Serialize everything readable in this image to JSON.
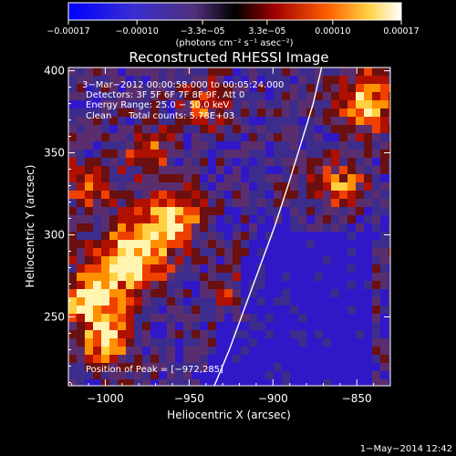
{
  "chart_data": {
    "type": "heatmap",
    "title": "Reconstructed RHESSI Image",
    "xlabel": "Heliocentric X (arcsec)",
    "ylabel": "Heliocentric Y (arcsec)",
    "xlim": [
      -1022,
      -830
    ],
    "ylim": [
      208,
      402
    ],
    "x_ticks": [
      -1000,
      -950,
      -900,
      -850
    ],
    "x_tick_labels": [
      "−1000",
      "−950",
      "−900",
      "−850"
    ],
    "y_ticks": [
      250,
      300,
      350,
      400
    ],
    "y_tick_labels": [
      "250",
      "300",
      "350",
      "400"
    ],
    "colorbar": {
      "range": [
        -0.00017,
        0.00017
      ],
      "ticks": [
        -0.00017,
        -0.0001,
        -3.3e-05,
        3.3e-05,
        0.0001,
        0.00017
      ],
      "tick_labels": [
        "−0.00017",
        "−0.00010",
        "−3.3e−05",
        "3.3e−05",
        "0.00010",
        "0.00017"
      ],
      "units_label": "(photons cm⁻² s⁻¹ asec⁻²)"
    },
    "annotations": [
      "3−Mar−2012 00:00:58.000 to 00:05:24.000",
      "Detectors: 3F 5F 6F 7F 8F 9F, Att 0",
      "Energy Range: 25.0 − 50.0 keV",
      "Clean",
      "Total counts: 5.78E+03"
    ],
    "peak_label": "Position of Peak = [−972,285]",
    "peak_position": [
      -972,
      285
    ],
    "limb_curve": [
      [
        -935,
        208
      ],
      [
        -926,
        230
      ],
      [
        -917,
        255
      ],
      [
        -908,
        280
      ],
      [
        -899,
        305
      ],
      [
        -891,
        330
      ],
      [
        -882,
        360
      ],
      [
        -876,
        380
      ],
      [
        -871,
        402
      ]
    ],
    "grid": false,
    "legend": "none"
  },
  "footer": {
    "timestamp": "1−May−2014 12:42"
  },
  "colors": {
    "background": "#000000",
    "foreground": "#ffffff"
  }
}
